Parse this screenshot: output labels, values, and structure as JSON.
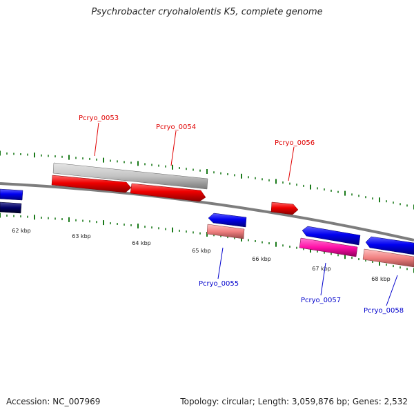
{
  "title": "Psychrobacter cryohalolentis K5, complete genome",
  "scale": {
    "tick_labels": [
      "62 kbp",
      "63 kbp",
      "64 kbp",
      "65 kbp",
      "66 kbp",
      "67 kbp",
      "68 kbp"
    ]
  },
  "genes": [
    {
      "label": "Pcryo_0053",
      "strand": "forward",
      "color": "#ee0000"
    },
    {
      "label": "Pcryo_0054",
      "strand": "forward",
      "color": "#ee0000"
    },
    {
      "label": "Pcryo_0055",
      "strand": "reverse",
      "color": "#0000f0"
    },
    {
      "label": "Pcryo_0056",
      "strand": "forward",
      "color": "#ee0000"
    },
    {
      "label": "Pcryo_0057",
      "strand": "reverse",
      "color": "#0000f0"
    },
    {
      "label": "Pcryo_0058",
      "strand": "reverse",
      "color": "#0000f0"
    }
  ],
  "colors": {
    "forward_gene": "#ee0000",
    "reverse_gene": "#0000f0",
    "forward_label": "#e00000",
    "reverse_label": "#0000cc",
    "ticks": "#1a7a1a",
    "backbone": "#7d7d7d"
  },
  "footer": {
    "accession": "Accession: NC_007969",
    "stats": "Topology: circular; Length: 3,059,876 bp; Genes: 2,532"
  }
}
